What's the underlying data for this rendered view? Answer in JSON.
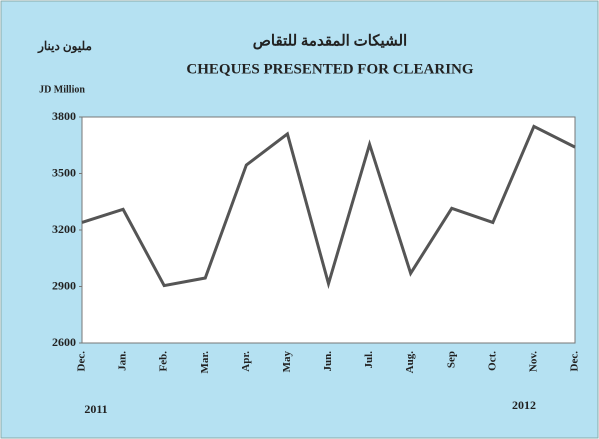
{
  "chart_data": {
    "type": "line",
    "title_ar": "الشيكات المقدمة للتقاص",
    "title": "CHEQUES PRESENTED FOR CLEARING",
    "unit_label_ar": "مليون دينار",
    "unit_label": "JD Million",
    "annotations": [
      "2011",
      "2012"
    ],
    "categories": [
      "Dec.",
      "Jan.",
      "Feb.",
      "Mar.",
      "Apr.",
      "May",
      "Jun.",
      "Jul.",
      "Aug.",
      "Sep",
      "Oct.",
      "Nov.",
      "Dec."
    ],
    "values": [
      3240,
      3310,
      2905,
      2945,
      3545,
      3710,
      2915,
      3655,
      2970,
      3315,
      3240,
      3750,
      3640
    ],
    "color": "#555555",
    "ylim": [
      2600,
      3800
    ],
    "yticks": [
      2600,
      2900,
      3200,
      3500,
      3800
    ],
    "grid": false
  }
}
